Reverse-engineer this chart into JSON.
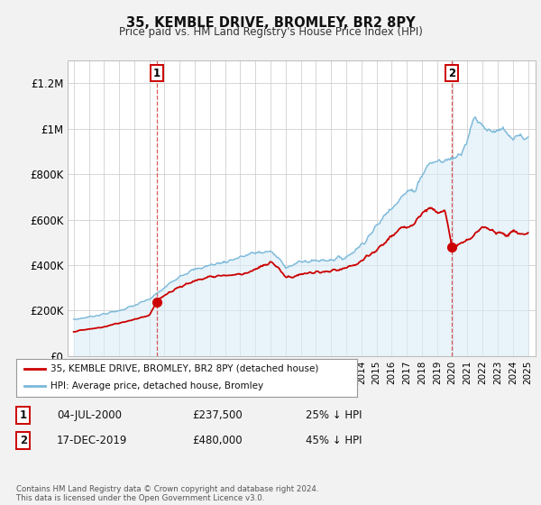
{
  "title": "35, KEMBLE DRIVE, BROMLEY, BR2 8PY",
  "subtitle": "Price paid vs. HM Land Registry's House Price Index (HPI)",
  "hpi_color": "#7ab8d9",
  "hpi_fill": "#daedf7",
  "price_color": "#cc0000",
  "background_color": "#f2f2f2",
  "plot_bg_color": "#ffffff",
  "ylim": [
    0,
    1300000
  ],
  "yticks": [
    0,
    200000,
    400000,
    600000,
    800000,
    1000000,
    1200000
  ],
  "ytick_labels": [
    "£0",
    "£200K",
    "£400K",
    "£600K",
    "£800K",
    "£1M",
    "£1.2M"
  ],
  "sale1_year": 2000.5,
  "sale1_price": 237500,
  "sale2_year": 2019.96,
  "sale2_price": 480000,
  "legend_line1": "35, KEMBLE DRIVE, BROMLEY, BR2 8PY (detached house)",
  "legend_line2": "HPI: Average price, detached house, Bromley",
  "annotation1_date": "04-JUL-2000",
  "annotation1_price": "£237,500",
  "annotation1_hpi": "25% ↓ HPI",
  "annotation2_date": "17-DEC-2019",
  "annotation2_price": "£480,000",
  "annotation2_hpi": "45% ↓ HPI",
  "footer": "Contains HM Land Registry data © Crown copyright and database right 2024.\nThis data is licensed under the Open Government Licence v3.0."
}
